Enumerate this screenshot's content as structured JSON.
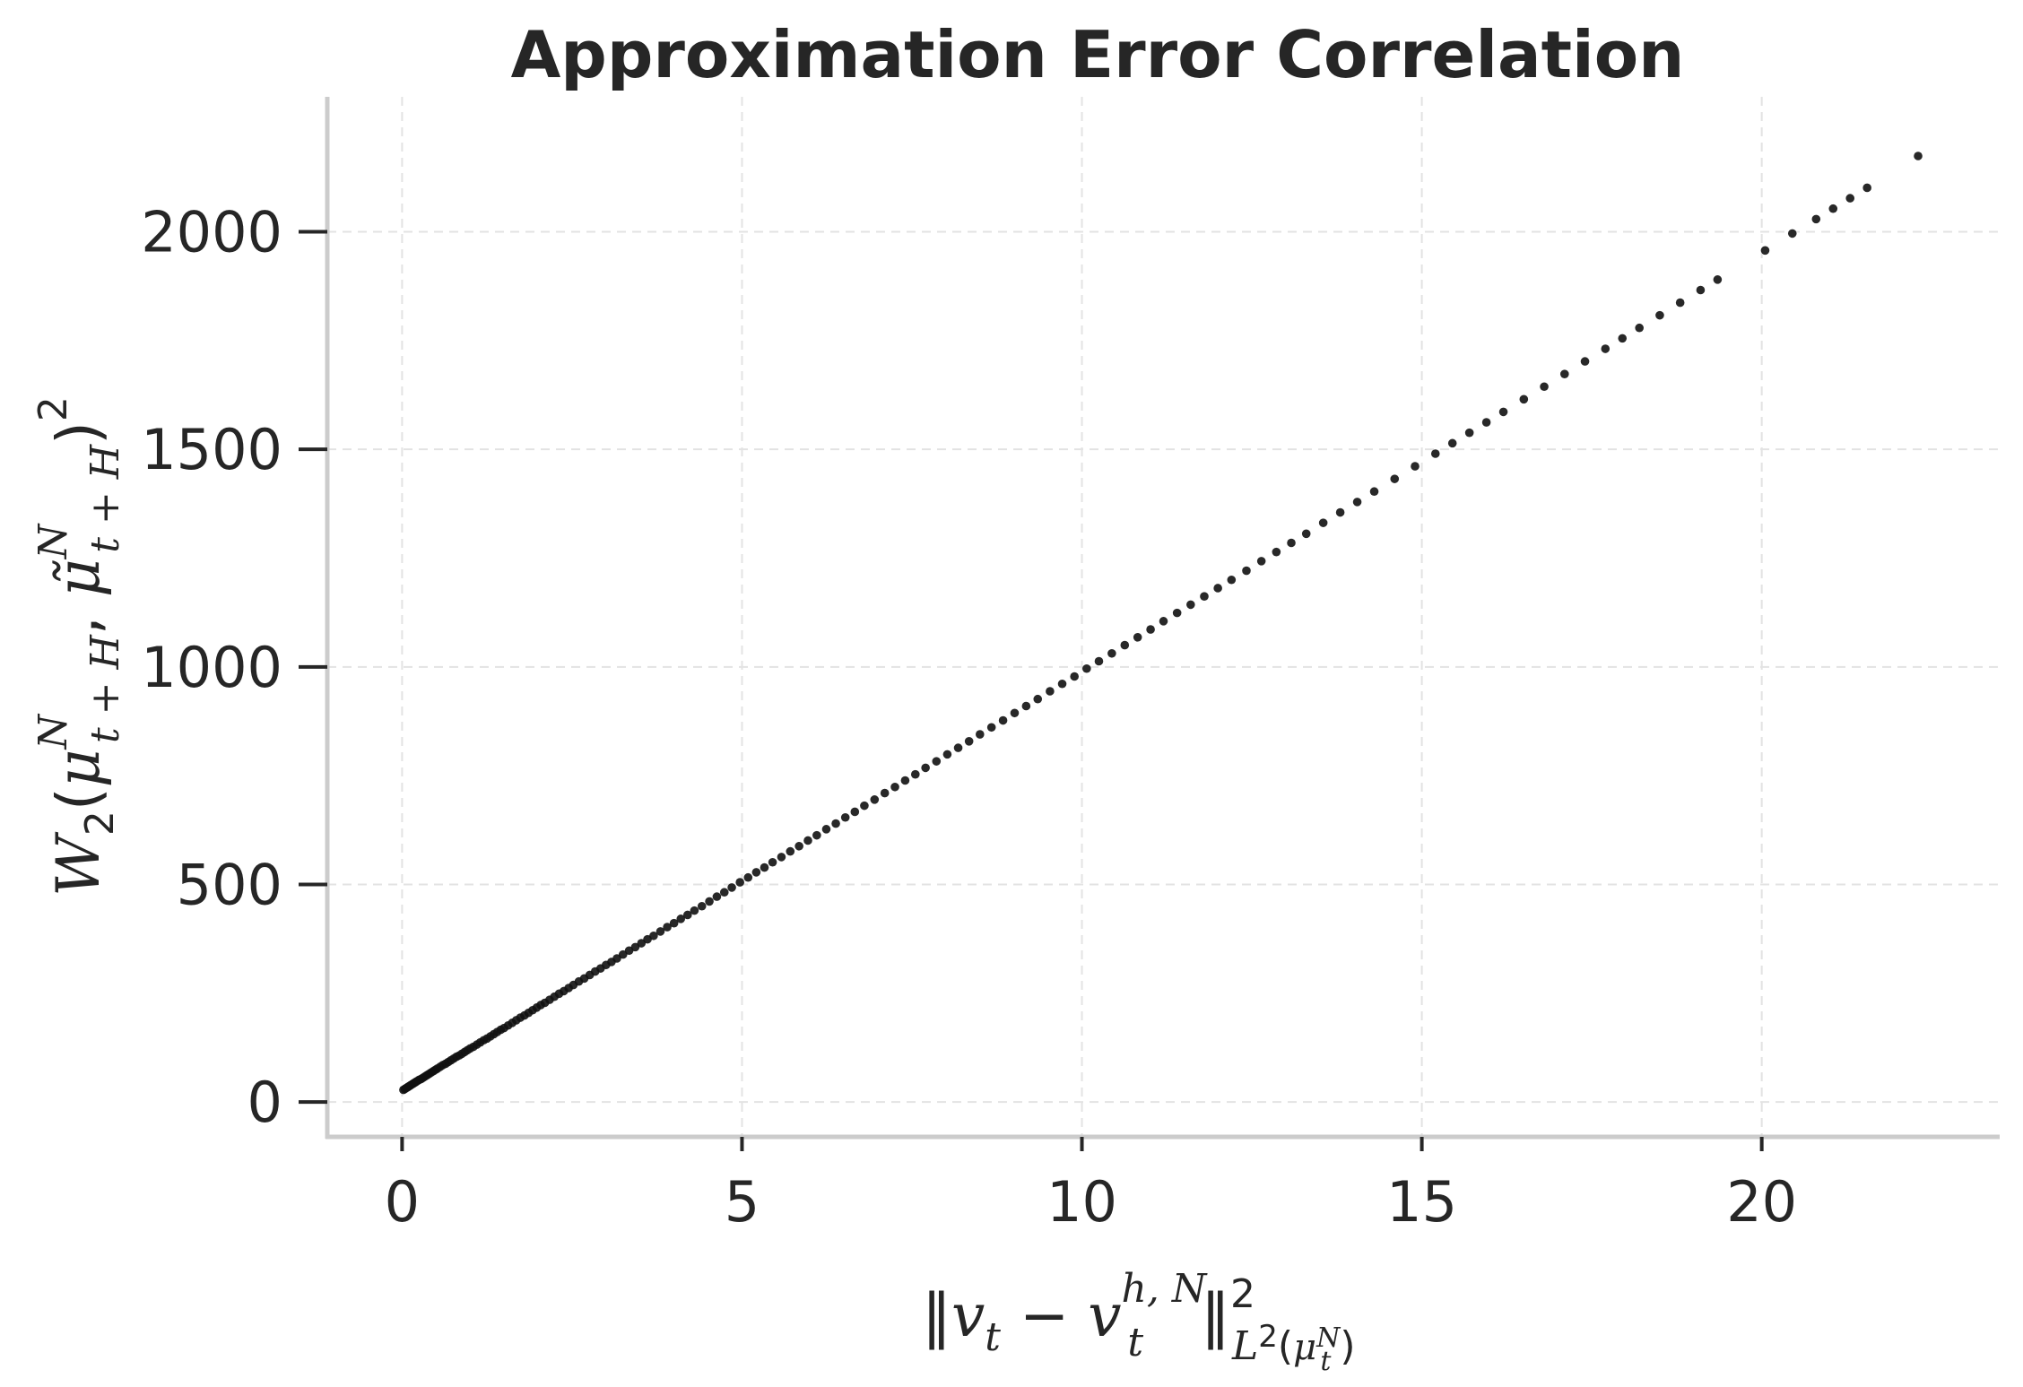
{
  "chart_data": {
    "type": "scatter",
    "title": "Approximation Error Correlation",
    "xlabel": "‖v_t − v_t^{h,N}‖²_{L²(μ_t^N)}",
    "ylabel": "W_2(μ^N_{t+H}, μ̃^N_{t+H})²",
    "xlim": [
      -1.1,
      23.5
    ],
    "ylim": [
      -80,
      2310
    ],
    "xticks": [
      0,
      5,
      10,
      15,
      20
    ],
    "yticks": [
      0,
      500,
      1000,
      1500,
      2000
    ],
    "grid": true,
    "marker_color": "#111111",
    "relation": {
      "slope": 96.3,
      "intercept": 26
    },
    "x": [
      0.02,
      0.04,
      0.06,
      0.08,
      0.1,
      0.12,
      0.14,
      0.16,
      0.18,
      0.2,
      0.22,
      0.25,
      0.28,
      0.31,
      0.34,
      0.37,
      0.4,
      0.43,
      0.46,
      0.49,
      0.52,
      0.56,
      0.6,
      0.64,
      0.68,
      0.72,
      0.76,
      0.8,
      0.84,
      0.88,
      0.92,
      0.96,
      1.0,
      1.05,
      1.1,
      1.15,
      1.2,
      1.25,
      1.3,
      1.35,
      1.4,
      1.45,
      1.5,
      1.56,
      1.62,
      1.68,
      1.74,
      1.8,
      1.86,
      1.92,
      1.98,
      2.04,
      2.1,
      2.17,
      2.24,
      2.31,
      2.38,
      2.45,
      2.52,
      2.6,
      2.68,
      2.76,
      2.84,
      2.92,
      3.0,
      3.08,
      3.16,
      3.25,
      3.34,
      3.43,
      3.52,
      3.61,
      3.7,
      3.8,
      3.9,
      4.0,
      4.1,
      4.2,
      4.3,
      4.41,
      4.52,
      4.63,
      4.74,
      4.85,
      4.97,
      5.09,
      5.21,
      5.33,
      5.45,
      5.58,
      5.71,
      5.84,
      5.97,
      6.1,
      6.24,
      6.38,
      6.52,
      6.66,
      6.8,
      6.95,
      7.1,
      7.25,
      7.4,
      7.55,
      7.7,
      7.86,
      8.02,
      8.18,
      8.34,
      8.5,
      8.67,
      8.84,
      9.01,
      9.18,
      9.35,
      9.53,
      9.71,
      9.89,
      10.07,
      10.25,
      10.44,
      10.63,
      10.82,
      11.01,
      11.2,
      11.4,
      11.6,
      11.8,
      12.0,
      12.2,
      12.42,
      12.64,
      12.86,
      13.08,
      13.3,
      13.55,
      13.8,
      14.05,
      14.3,
      14.6,
      14.9,
      15.2,
      15.45,
      15.7,
      15.95,
      16.2,
      16.5,
      16.8,
      17.1,
      17.4,
      17.7,
      17.95,
      18.2,
      18.5,
      18.8,
      19.1,
      19.35,
      20.05,
      20.45,
      20.8,
      21.05,
      21.3,
      21.55,
      22.3
    ],
    "y": [
      28,
      30,
      32,
      34,
      36,
      38,
      40,
      42,
      44,
      46,
      48,
      51,
      53,
      56,
      59,
      62,
      65,
      68,
      71,
      74,
      77,
      81,
      85,
      88,
      92,
      96,
      100,
      104,
      107,
      111,
      115,
      119,
      123,
      127,
      132,
      137,
      142,
      146,
      151,
      156,
      161,
      166,
      170,
      176,
      182,
      188,
      194,
      199,
      205,
      211,
      217,
      223,
      228,
      235,
      242,
      249,
      255,
      262,
      269,
      277,
      284,
      292,
      300,
      307,
      315,
      322,
      330,
      339,
      348,
      356,
      365,
      374,
      382,
      392,
      402,
      411,
      421,
      430,
      440,
      450,
      461,
      472,
      482,
      493,
      505,
      516,
      528,
      539,
      551,
      563,
      576,
      588,
      601,
      613,
      627,
      640,
      654,
      667,
      681,
      695,
      710,
      724,
      739,
      753,
      768,
      783,
      799,
      814,
      829,
      845,
      861,
      877,
      894,
      910,
      926,
      944,
      961,
      978,
      996,
      1013,
      1031,
      1050,
      1068,
      1086,
      1105,
      1124,
      1143,
      1162,
      1181,
      1200,
      1221,
      1243,
      1264,
      1285,
      1306,
      1331,
      1355,
      1379,
      1403,
      1432,
      1461,
      1490,
      1514,
      1538,
      1562,
      1586,
      1615,
      1644,
      1673,
      1702,
      1731,
      1755,
      1779,
      1808,
      1837,
      1866,
      1890,
      1957,
      1996,
      2029,
      2053,
      2077,
      2101,
      2174
    ]
  }
}
